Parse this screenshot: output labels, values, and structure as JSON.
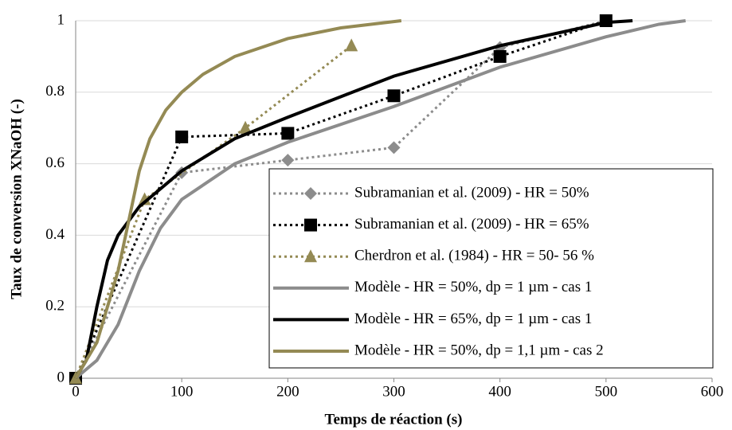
{
  "chart_data": {
    "type": "line",
    "xlabel": "Temps de réaction (s)",
    "ylabel": "Taux de conversion XNaOH (-)",
    "xlim": [
      0,
      600
    ],
    "xticks": [
      0,
      100,
      200,
      300,
      400,
      500,
      600
    ],
    "ylim": [
      0,
      1
    ],
    "yticks": [
      0,
      0.2,
      0.4,
      0.6,
      0.8,
      1
    ],
    "grid": true,
    "legend": "lower right",
    "series": [
      {
        "name": "Subramanian et al. (2009) - HR = 50%",
        "color": "#8c8c8c",
        "dash": "dotted",
        "marker": "diamond",
        "x": [
          0,
          100,
          200,
          300,
          400,
          500
        ],
        "values": [
          0,
          0.575,
          0.61,
          0.645,
          0.925,
          1
        ]
      },
      {
        "name": "Subramanian et al. (2009) - HR = 65%",
        "color": "#000000",
        "dash": "dotted",
        "marker": "square",
        "x": [
          0,
          100,
          200,
          300,
          400,
          500
        ],
        "values": [
          0,
          0.675,
          0.685,
          0.79,
          0.9,
          1
        ]
      },
      {
        "name": "Cherdron et al. (1984) - HR = 50- 56 %",
        "color": "#948a54",
        "dash": "dotted",
        "marker": "triangle",
        "x": [
          0,
          65,
          160,
          260
        ],
        "values": [
          0,
          0.5,
          0.7,
          0.93
        ]
      },
      {
        "name": "Modèle - HR = 50%, dp = 1 µm - cas 1",
        "color": "#8c8c8c",
        "dash": "solid",
        "marker": "none",
        "x": [
          0,
          20,
          40,
          60,
          80,
          100,
          150,
          200,
          300,
          400,
          500,
          550,
          575
        ],
        "values": [
          0,
          0.05,
          0.15,
          0.3,
          0.42,
          0.5,
          0.6,
          0.66,
          0.76,
          0.87,
          0.955,
          0.99,
          1
        ]
      },
      {
        "name": "Modèle - HR = 65%, dp = 1 µm - cas 1",
        "color": "#000000",
        "dash": "solid",
        "marker": "none",
        "x": [
          0,
          10,
          20,
          30,
          40,
          60,
          100,
          150,
          200,
          300,
          400,
          500,
          525
        ],
        "values": [
          0,
          0.05,
          0.2,
          0.33,
          0.4,
          0.48,
          0.58,
          0.67,
          0.73,
          0.845,
          0.93,
          0.995,
          1
        ]
      },
      {
        "name": "Modèle - HR = 50%, dp = 1,1 µm - cas 2",
        "color": "#948a54",
        "dash": "solid",
        "marker": "none",
        "x": [
          0,
          20,
          40,
          60,
          70,
          85,
          100,
          120,
          150,
          200,
          250,
          307
        ],
        "values": [
          0,
          0.1,
          0.3,
          0.58,
          0.67,
          0.75,
          0.8,
          0.85,
          0.9,
          0.95,
          0.98,
          1
        ]
      }
    ]
  }
}
